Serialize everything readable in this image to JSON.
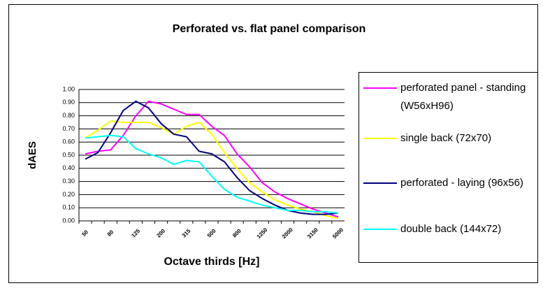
{
  "chart_data": {
    "type": "line",
    "title": "Perforated vs. flat panel comparison",
    "x_label": "Octave thirds [Hz]",
    "y_label": "dAES",
    "categories": [
      "50",
      null,
      "80",
      null,
      "125",
      null,
      "200",
      null,
      "315",
      null,
      "500",
      null,
      "800",
      null,
      "1250",
      null,
      "2000",
      null,
      "3150",
      null,
      "5000"
    ],
    "ylim": [
      0,
      1
    ],
    "yticks": [
      {
        "value": 0,
        "label": "0.00"
      },
      {
        "value": 0.1,
        "label": "0.10"
      },
      {
        "value": 0.2,
        "label": "0.20"
      },
      {
        "value": 0.3,
        "label": "0.30"
      },
      {
        "value": 0.4,
        "label": "0.40"
      },
      {
        "value": 0.5,
        "label": "0.50"
      },
      {
        "value": 0.6,
        "label": "0.60"
      },
      {
        "value": 0.7,
        "label": "0.70"
      },
      {
        "value": 0.8,
        "label": "0.80"
      },
      {
        "value": 0.9,
        "label": "0.90"
      },
      {
        "value": 1,
        "label": "1.00"
      }
    ],
    "grid": true,
    "legend": "right",
    "series": [
      {
        "name": "perforated panel - standing (W56xH96)",
        "color": "#ff00ff",
        "values": [
          0.51,
          0.53,
          0.54,
          0.65,
          0.8,
          0.91,
          0.89,
          0.85,
          0.81,
          0.81,
          0.72,
          0.65,
          0.51,
          0.41,
          0.29,
          0.22,
          0.17,
          0.13,
          0.09,
          0.06,
          0.03
        ]
      },
      {
        "name": "single back (72x70)",
        "color": "#ffff00",
        "values": [
          0.63,
          0.69,
          0.76,
          0.75,
          0.75,
          0.75,
          0.71,
          0.66,
          0.72,
          0.75,
          0.66,
          0.52,
          0.4,
          0.29,
          0.22,
          0.16,
          0.12,
          0.09,
          0.07,
          0.04,
          0.02
        ]
      },
      {
        "name": "perforated - laying (96x56)",
        "color": "#000080",
        "values": [
          0.47,
          0.52,
          0.67,
          0.84,
          0.91,
          0.86,
          0.74,
          0.66,
          0.64,
          0.53,
          0.51,
          0.45,
          0.33,
          0.23,
          0.17,
          0.12,
          0.08,
          0.06,
          0.05,
          0.05,
          0.06
        ]
      },
      {
        "name": "double back (144x72)",
        "color": "#00ffff",
        "values": [
          0.63,
          0.64,
          0.65,
          0.64,
          0.55,
          0.51,
          0.48,
          0.43,
          0.46,
          0.45,
          0.34,
          0.24,
          0.18,
          0.15,
          0.12,
          0.1,
          0.08,
          0.08,
          0.07,
          0.07,
          0.06
        ]
      }
    ]
  }
}
